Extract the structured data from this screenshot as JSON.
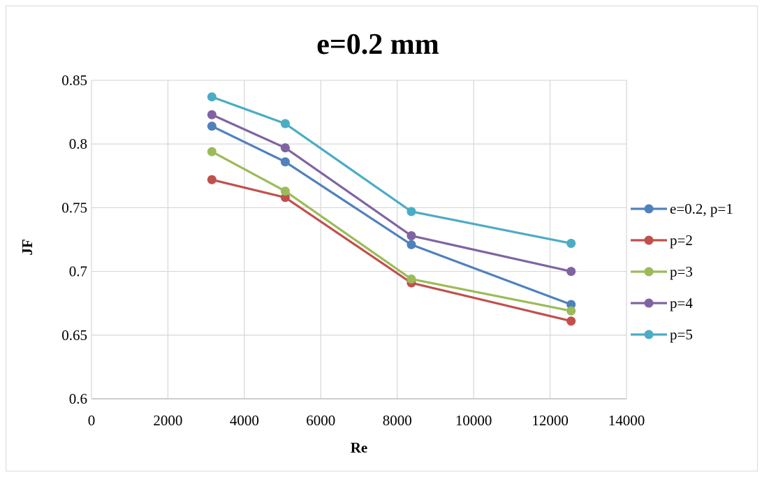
{
  "chart_data": {
    "type": "line",
    "title": "e=0.2 mm",
    "xlabel": "Re",
    "ylabel": "JF",
    "xlim": [
      0,
      14000
    ],
    "ylim": [
      0.6,
      0.85
    ],
    "xticks": [
      "0",
      "2000",
      "4000",
      "6000",
      "8000",
      "10000",
      "12000",
      "14000"
    ],
    "yticks": [
      "0.6",
      "0.65",
      "0.7",
      "0.75",
      "0.8",
      "0.85"
    ],
    "grid": true,
    "legend_position": "right",
    "x": [
      3150,
      5070,
      8370,
      12550
    ],
    "series": [
      {
        "name": "e=0.2, p=1",
        "color": "#4f81bd",
        "values": [
          0.814,
          0.786,
          0.721,
          0.674
        ]
      },
      {
        "name": "p=2",
        "color": "#c0504d",
        "values": [
          0.772,
          0.758,
          0.691,
          0.661
        ]
      },
      {
        "name": "p=3",
        "color": "#9bbb59",
        "values": [
          0.794,
          0.763,
          0.694,
          0.669
        ]
      },
      {
        "name": "p=4",
        "color": "#8064a2",
        "values": [
          0.823,
          0.797,
          0.728,
          0.7
        ]
      },
      {
        "name": "p=5",
        "color": "#4bacc6",
        "values": [
          0.837,
          0.816,
          0.747,
          0.722
        ]
      }
    ]
  }
}
